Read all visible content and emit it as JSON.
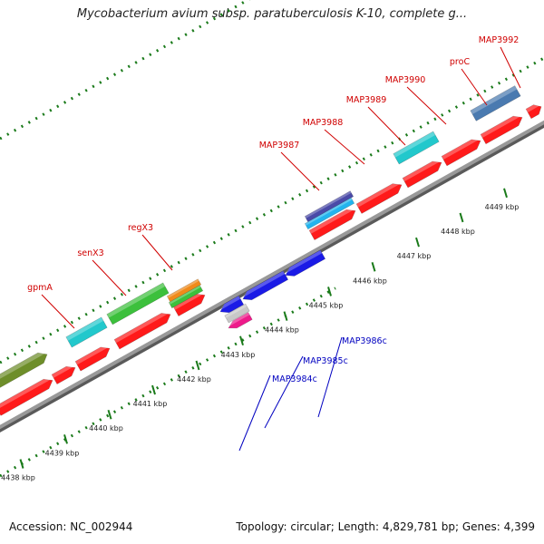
{
  "title": "Mycobacterium avium subsp. paratuberculosis K-10, complete g...",
  "accession_label": "Accession: NC_002944",
  "genome_info": "Topology: circular; Length: 4,829,781 bp; Genes: 4,399",
  "ticks": [
    "4438 kbp",
    "4439 kbp",
    "4440 kbp",
    "4441 kbp",
    "4442 kbp",
    "4443 kbp",
    "4444 kbp",
    "4445 kbp",
    "4446 kbp",
    "4447 kbp",
    "4448 kbp",
    "4449 kbp"
  ],
  "forward_gene_labels": [
    "gpmA",
    "senX3",
    "regX3",
    "MAP3987",
    "MAP3988",
    "MAP3989",
    "MAP3990",
    "proC",
    "MAP3992"
  ],
  "reverse_gene_labels": [
    "MAP3984c",
    "MAP3985c",
    "MAP3986c"
  ],
  "colors": {
    "forward_label": "#d00000",
    "reverse_label": "#0000c0",
    "cds": "#ff1a1a",
    "backbone": "#999999",
    "dots": "#1a7a1a"
  }
}
